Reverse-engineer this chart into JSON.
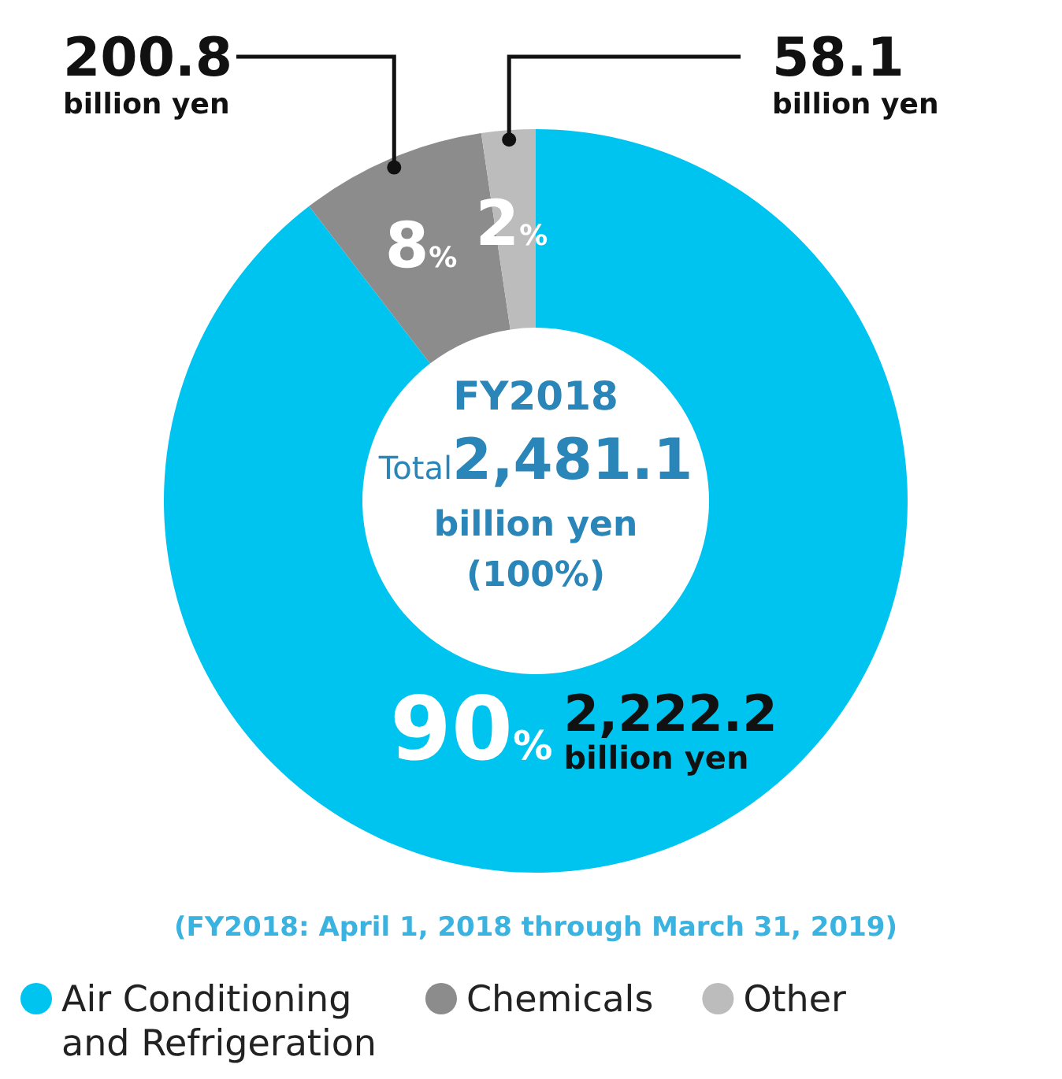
{
  "chart_data": {
    "type": "donut",
    "title": "FY2018",
    "subtitle": "Total2,481.1 billion yen (100%)",
    "categories": [
      "Air Conditioning and Refrigeration",
      "Chemicals",
      "Other"
    ],
    "values": [
      2222.2,
      200.8,
      58.1
    ],
    "colors": [
      "#00c4f0",
      "#8c8c8c",
      "#bcbcbc"
    ],
    "value_labels": [
      "2,222.2 billion yen",
      "200.8 billion yen",
      "58.1 billion yen"
    ],
    "annotations": [
      {
        "text": "90%",
        "x": "Air Conditioning and Refrigeration"
      },
      {
        "text": "8%",
        "x": "Chemicals"
      },
      {
        "text": "2%",
        "x": "Other"
      },
      "(FY2018: April 1, 2018 through March 31, 2019)"
    ],
    "legend": "bottom"
  }
}
